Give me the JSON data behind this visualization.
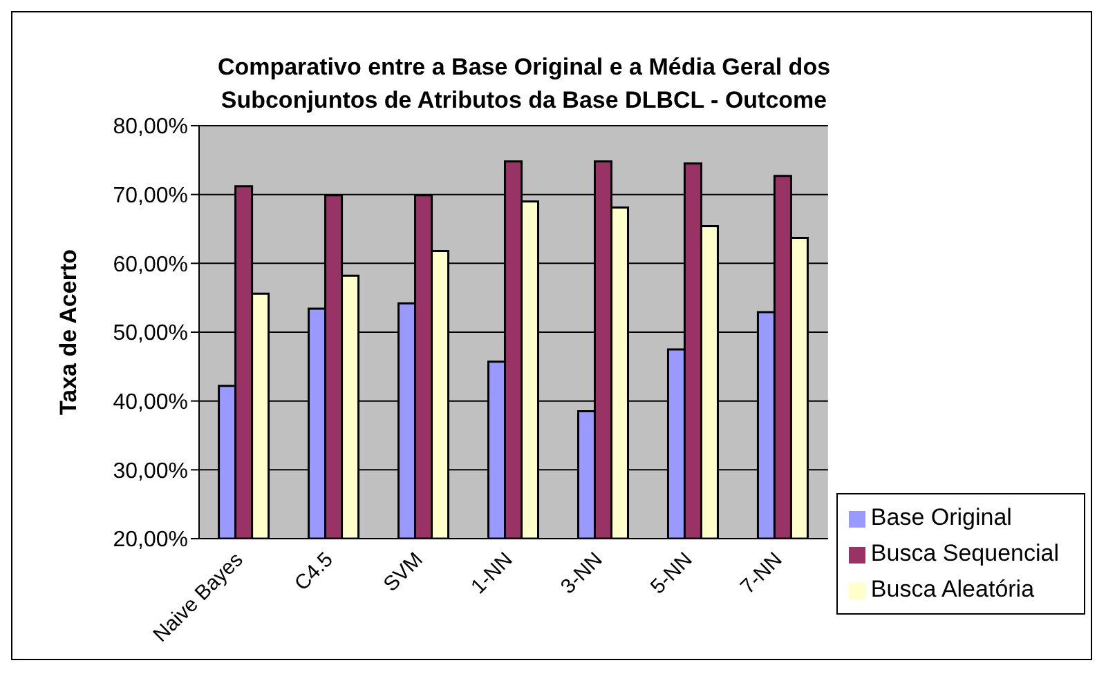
{
  "chart_data": {
    "type": "bar",
    "title": "Comparativo entre a Base Original e a Média Geral dos Subconjuntos de Atributos da Base DLBCL - Outcome",
    "ylabel": "Taxa de Acerto",
    "categories": [
      "Naive Bayes",
      "C4.5",
      "SVM",
      "1-NN",
      "3-NN",
      "5-NN",
      "7-NN"
    ],
    "series": [
      {
        "name": "Base Original",
        "color": "#9999ff",
        "values": [
          42.2,
          53.4,
          54.2,
          45.7,
          38.5,
          47.5,
          52.9
        ]
      },
      {
        "name": "Busca Sequencial",
        "color": "#993366",
        "values": [
          71.2,
          69.9,
          69.9,
          74.8,
          74.8,
          74.5,
          72.7
        ]
      },
      {
        "name": "Busca Aleatória",
        "color": "#ffffcc",
        "values": [
          55.6,
          58.2,
          61.8,
          69.0,
          68.1,
          65.4,
          63.7
        ]
      }
    ],
    "ylim": [
      20,
      80
    ],
    "yticks": [
      {
        "value": 20,
        "label": "20,00%"
      },
      {
        "value": 30,
        "label": "30,00%"
      },
      {
        "value": 40,
        "label": "40,00%"
      },
      {
        "value": 50,
        "label": "50,00%"
      },
      {
        "value": 60,
        "label": "60,00%"
      },
      {
        "value": 70,
        "label": "70,00%"
      },
      {
        "value": 80,
        "label": "80,00%"
      }
    ],
    "grid": "y",
    "legend": "bottom right"
  }
}
